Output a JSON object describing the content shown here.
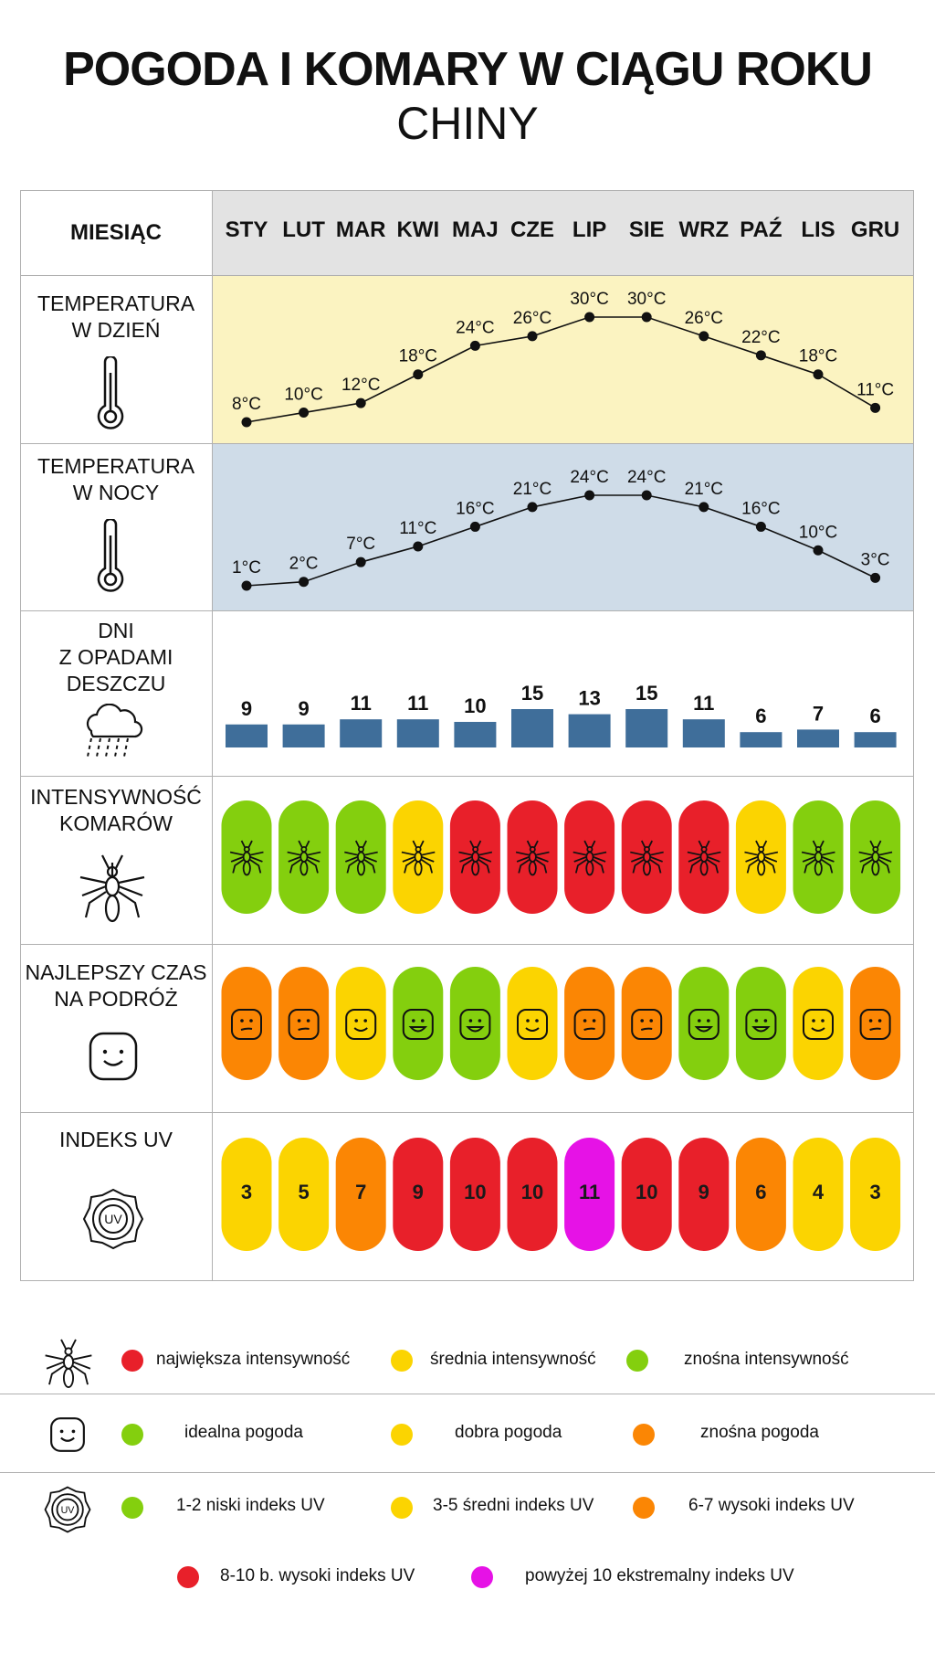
{
  "title": "POGODA I KOMARY W CIĄGU ROKU",
  "subtitle": "CHINY",
  "header_label": "MIESIĄC",
  "months": [
    "STY",
    "LUT",
    "MAR",
    "KWI",
    "MAJ",
    "CZE",
    "LIP",
    "SIE",
    "WRZ",
    "PAŹ",
    "LIS",
    "GRU"
  ],
  "rows": {
    "day_temp": {
      "label_lines": [
        "TEMPERATURA",
        "W DZIEŃ"
      ],
      "icon": "thermometer-icon"
    },
    "night_temp": {
      "label_lines": [
        "TEMPERATURA",
        "W NOCY"
      ],
      "icon": "thermometer-icon"
    },
    "rain": {
      "label_lines": [
        "DNI",
        "Z OPADAMI",
        "DESZCZU"
      ],
      "icon": "rain-cloud-icon"
    },
    "mosquito": {
      "label_lines": [
        "INTENSYWNOŚĆ",
        "KOMARÓW"
      ],
      "icon": "mosquito-icon"
    },
    "travel": {
      "label_lines": [
        "NAJLEPSZY CZAS",
        "NA PODRÓŻ"
      ],
      "icon": "smiley-icon"
    },
    "uv": {
      "label_lines": [
        "INDEKS UV"
      ],
      "icon": "uv-sun-icon"
    }
  },
  "colors": {
    "day_band": "#fbf3c1",
    "night_band": "#cfdce8",
    "header_band": "#e3e3e3",
    "bar": "#3f6e9a",
    "red": "#e8202a",
    "yellow": "#fbd401",
    "green": "#84cf0e",
    "orange": "#fb8604",
    "magenta": "#e612e6"
  },
  "chart_data": [
    {
      "type": "line",
      "name": "day",
      "categories": [
        "STY",
        "LUT",
        "MAR",
        "KWI",
        "MAJ",
        "CZE",
        "LIP",
        "SIE",
        "WRZ",
        "PAŹ",
        "LIS",
        "GRU"
      ],
      "values": [
        8,
        10,
        12,
        18,
        24,
        26,
        30,
        30,
        26,
        22,
        18,
        11
      ],
      "labels": [
        "8°C",
        "10°C",
        "12°C",
        "18°C",
        "24°C",
        "26°C",
        "30°C",
        "30°C",
        "26°C",
        "22°C",
        "18°C",
        "11°C"
      ]
    },
    {
      "type": "line",
      "name": "night",
      "categories": [
        "STY",
        "LUT",
        "MAR",
        "KWI",
        "MAJ",
        "CZE",
        "LIP",
        "SIE",
        "WRZ",
        "PAŹ",
        "LIS",
        "GRU"
      ],
      "values": [
        1,
        2,
        7,
        11,
        16,
        21,
        24,
        24,
        21,
        16,
        10,
        3
      ],
      "labels": [
        "1°C",
        "2°C",
        "7°C",
        "11°C",
        "16°C",
        "21°C",
        "24°C",
        "24°C",
        "21°C",
        "16°C",
        "10°C",
        "3°C"
      ]
    },
    {
      "type": "bar",
      "name": "rain",
      "categories": [
        "STY",
        "LUT",
        "MAR",
        "KWI",
        "MAJ",
        "CZE",
        "LIP",
        "SIE",
        "WRZ",
        "PAŹ",
        "LIS",
        "GRU"
      ],
      "values": [
        9,
        9,
        11,
        11,
        10,
        15,
        13,
        15,
        11,
        6,
        7,
        6
      ]
    },
    {
      "type": "table",
      "name": "mosquito",
      "categories": [
        "STY",
        "LUT",
        "MAR",
        "KWI",
        "MAJ",
        "CZE",
        "LIP",
        "SIE",
        "WRZ",
        "PAŹ",
        "LIS",
        "GRU"
      ],
      "values": [
        "green",
        "green",
        "green",
        "yellow",
        "red",
        "red",
        "red",
        "red",
        "red",
        "yellow",
        "green",
        "green"
      ]
    },
    {
      "type": "table",
      "name": "travel",
      "categories": [
        "STY",
        "LUT",
        "MAR",
        "KWI",
        "MAJ",
        "CZE",
        "LIP",
        "SIE",
        "WRZ",
        "PAŹ",
        "LIS",
        "GRU"
      ],
      "values": [
        "orange",
        "orange",
        "yellow",
        "green",
        "green",
        "yellow",
        "orange",
        "orange",
        "green",
        "green",
        "yellow",
        "orange"
      ]
    },
    {
      "type": "table",
      "name": "uv",
      "categories": [
        "STY",
        "LUT",
        "MAR",
        "KWI",
        "MAJ",
        "CZE",
        "LIP",
        "SIE",
        "WRZ",
        "PAŹ",
        "LIS",
        "GRU"
      ],
      "values": [
        3,
        5,
        7,
        9,
        10,
        10,
        11,
        10,
        9,
        6,
        4,
        3
      ],
      "colors": [
        "yellow",
        "yellow",
        "orange",
        "red",
        "red",
        "red",
        "magenta",
        "red",
        "red",
        "orange",
        "yellow",
        "yellow"
      ]
    }
  ],
  "legend": {
    "mosquito": [
      {
        "color": "red",
        "text": "największa intensywność"
      },
      {
        "color": "yellow",
        "text": "średnia intensywność"
      },
      {
        "color": "green",
        "text": "znośna intensywność"
      }
    ],
    "weather": [
      {
        "color": "green",
        "text": "idealna pogoda"
      },
      {
        "color": "yellow",
        "text": "dobra pogoda"
      },
      {
        "color": "orange",
        "text": "znośna pogoda"
      }
    ],
    "uv": [
      {
        "color": "green",
        "text": "1-2 niski indeks UV"
      },
      {
        "color": "yellow",
        "text": "3-5 średni indeks UV"
      },
      {
        "color": "orange",
        "text": "6-7 wysoki indeks UV"
      },
      {
        "color": "red",
        "text": "8-10 b. wysoki indeks UV"
      },
      {
        "color": "magenta",
        "text": "powyżej 10 ekstremalny indeks UV"
      }
    ]
  }
}
